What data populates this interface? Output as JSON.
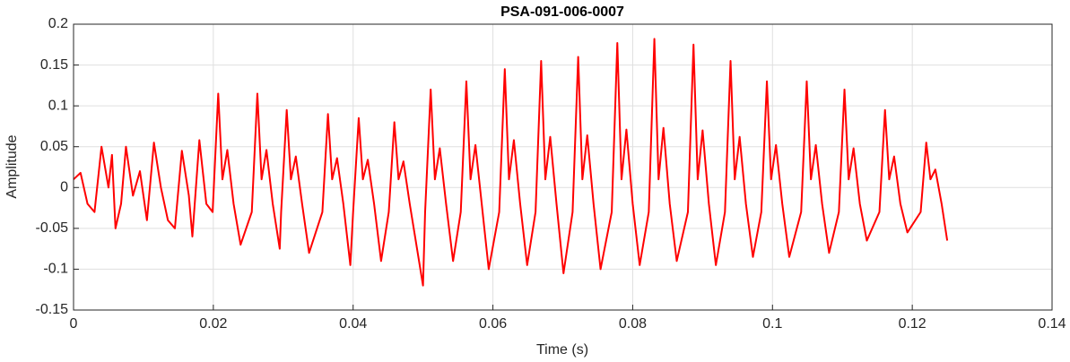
{
  "chart_data": {
    "type": "line",
    "title": "PSA-091-006-0007",
    "x_label": "Time (s)",
    "y_label": "Amplitude",
    "xlim": [
      0,
      0.14
    ],
    "xticks": [
      0,
      0.02,
      0.04,
      0.06,
      0.08,
      0.1,
      0.12,
      0.14
    ],
    "ylim": [
      -0.15,
      0.2
    ],
    "yticks": [
      -0.15,
      -0.1,
      -0.05,
      0,
      0.05,
      0.1,
      0.15,
      0.2
    ],
    "grid": true,
    "series": [
      {
        "color": "#ff0000",
        "x": [
          0,
          0.001,
          0.002,
          0.003,
          0.004,
          0.005,
          0.0055,
          0.006,
          0.0068,
          0.0075,
          0.0085,
          0.0095,
          0.0105,
          0.0115,
          0.0125,
          0.0135,
          0.0145,
          0.0155,
          0.0165,
          0.017,
          0.018,
          0.019,
          0.0199,
          0.0207,
          0.0213,
          0.022,
          0.0229,
          0.0239,
          0.0255,
          0.0263,
          0.0269,
          0.0276,
          0.0285,
          0.0295,
          0.0297,
          0.0305,
          0.0311,
          0.0318,
          0.0327,
          0.0337,
          0.0356,
          0.0364,
          0.037,
          0.0377,
          0.0386,
          0.0396,
          0.04,
          0.0408,
          0.0414,
          0.0421,
          0.043,
          0.044,
          0.0451,
          0.0459,
          0.0465,
          0.0472,
          0.0481,
          0.05,
          0.0503,
          0.0511,
          0.0517,
          0.0524,
          0.0533,
          0.0543,
          0.0554,
          0.0562,
          0.0568,
          0.0575,
          0.0584,
          0.0594,
          0.0609,
          0.0617,
          0.0623,
          0.063,
          0.0639,
          0.0649,
          0.0661,
          0.0669,
          0.0675,
          0.0682,
          0.0691,
          0.0701,
          0.0714,
          0.0722,
          0.0728,
          0.0735,
          0.0744,
          0.0754,
          0.077,
          0.0778,
          0.0784,
          0.0791,
          0.08,
          0.081,
          0.0823,
          0.0831,
          0.0837,
          0.0844,
          0.0853,
          0.0863,
          0.0879,
          0.0887,
          0.0893,
          0.09,
          0.0909,
          0.0919,
          0.0932,
          0.094,
          0.0946,
          0.0953,
          0.0962,
          0.0972,
          0.0984,
          0.0992,
          0.0998,
          0.1005,
          0.1014,
          0.1024,
          0.1041,
          0.1049,
          0.1055,
          0.1062,
          0.1071,
          0.1081,
          0.1095,
          0.1103,
          0.1109,
          0.1116,
          0.1125,
          0.1135,
          0.1153,
          0.1161,
          0.1167,
          0.1174,
          0.1183,
          0.1193,
          0.1212,
          0.122,
          0.1226,
          0.1233,
          0.1242,
          0.125
        ],
        "values": [
          0.01,
          0.018,
          -0.02,
          -0.03,
          0.05,
          0.0,
          0.04,
          -0.05,
          -0.02,
          0.05,
          -0.01,
          0.02,
          -0.04,
          0.055,
          0.0,
          -0.04,
          -0.05,
          0.045,
          -0.01,
          -0.06,
          0.058,
          -0.02,
          -0.03,
          0.115,
          0.01,
          0.046,
          -0.02,
          -0.07,
          -0.03,
          0.115,
          0.01,
          0.046,
          -0.02,
          -0.075,
          -0.03,
          0.095,
          0.01,
          0.038,
          -0.02,
          -0.08,
          -0.03,
          0.09,
          0.01,
          0.036,
          -0.02,
          -0.095,
          -0.03,
          0.085,
          0.01,
          0.034,
          -0.02,
          -0.09,
          -0.03,
          0.08,
          0.01,
          0.032,
          -0.02,
          -0.12,
          -0.03,
          0.12,
          0.01,
          0.048,
          -0.02,
          -0.09,
          -0.03,
          0.13,
          0.01,
          0.052,
          -0.02,
          -0.1,
          -0.03,
          0.145,
          0.01,
          0.058,
          -0.02,
          -0.095,
          -0.03,
          0.155,
          0.01,
          0.062,
          -0.02,
          -0.105,
          -0.03,
          0.16,
          0.01,
          0.064,
          -0.02,
          -0.1,
          -0.03,
          0.177,
          0.01,
          0.071,
          -0.02,
          -0.095,
          -0.03,
          0.182,
          0.01,
          0.073,
          -0.02,
          -0.09,
          -0.03,
          0.175,
          0.01,
          0.07,
          -0.02,
          -0.095,
          -0.03,
          0.155,
          0.01,
          0.062,
          -0.02,
          -0.085,
          -0.03,
          0.13,
          0.01,
          0.052,
          -0.02,
          -0.085,
          -0.03,
          0.13,
          0.01,
          0.052,
          -0.02,
          -0.08,
          -0.03,
          0.12,
          0.01,
          0.048,
          -0.02,
          -0.065,
          -0.03,
          0.095,
          0.01,
          0.038,
          -0.02,
          -0.055,
          -0.03,
          0.055,
          0.01,
          0.022,
          -0.02,
          -0.065
        ]
      }
    ]
  }
}
